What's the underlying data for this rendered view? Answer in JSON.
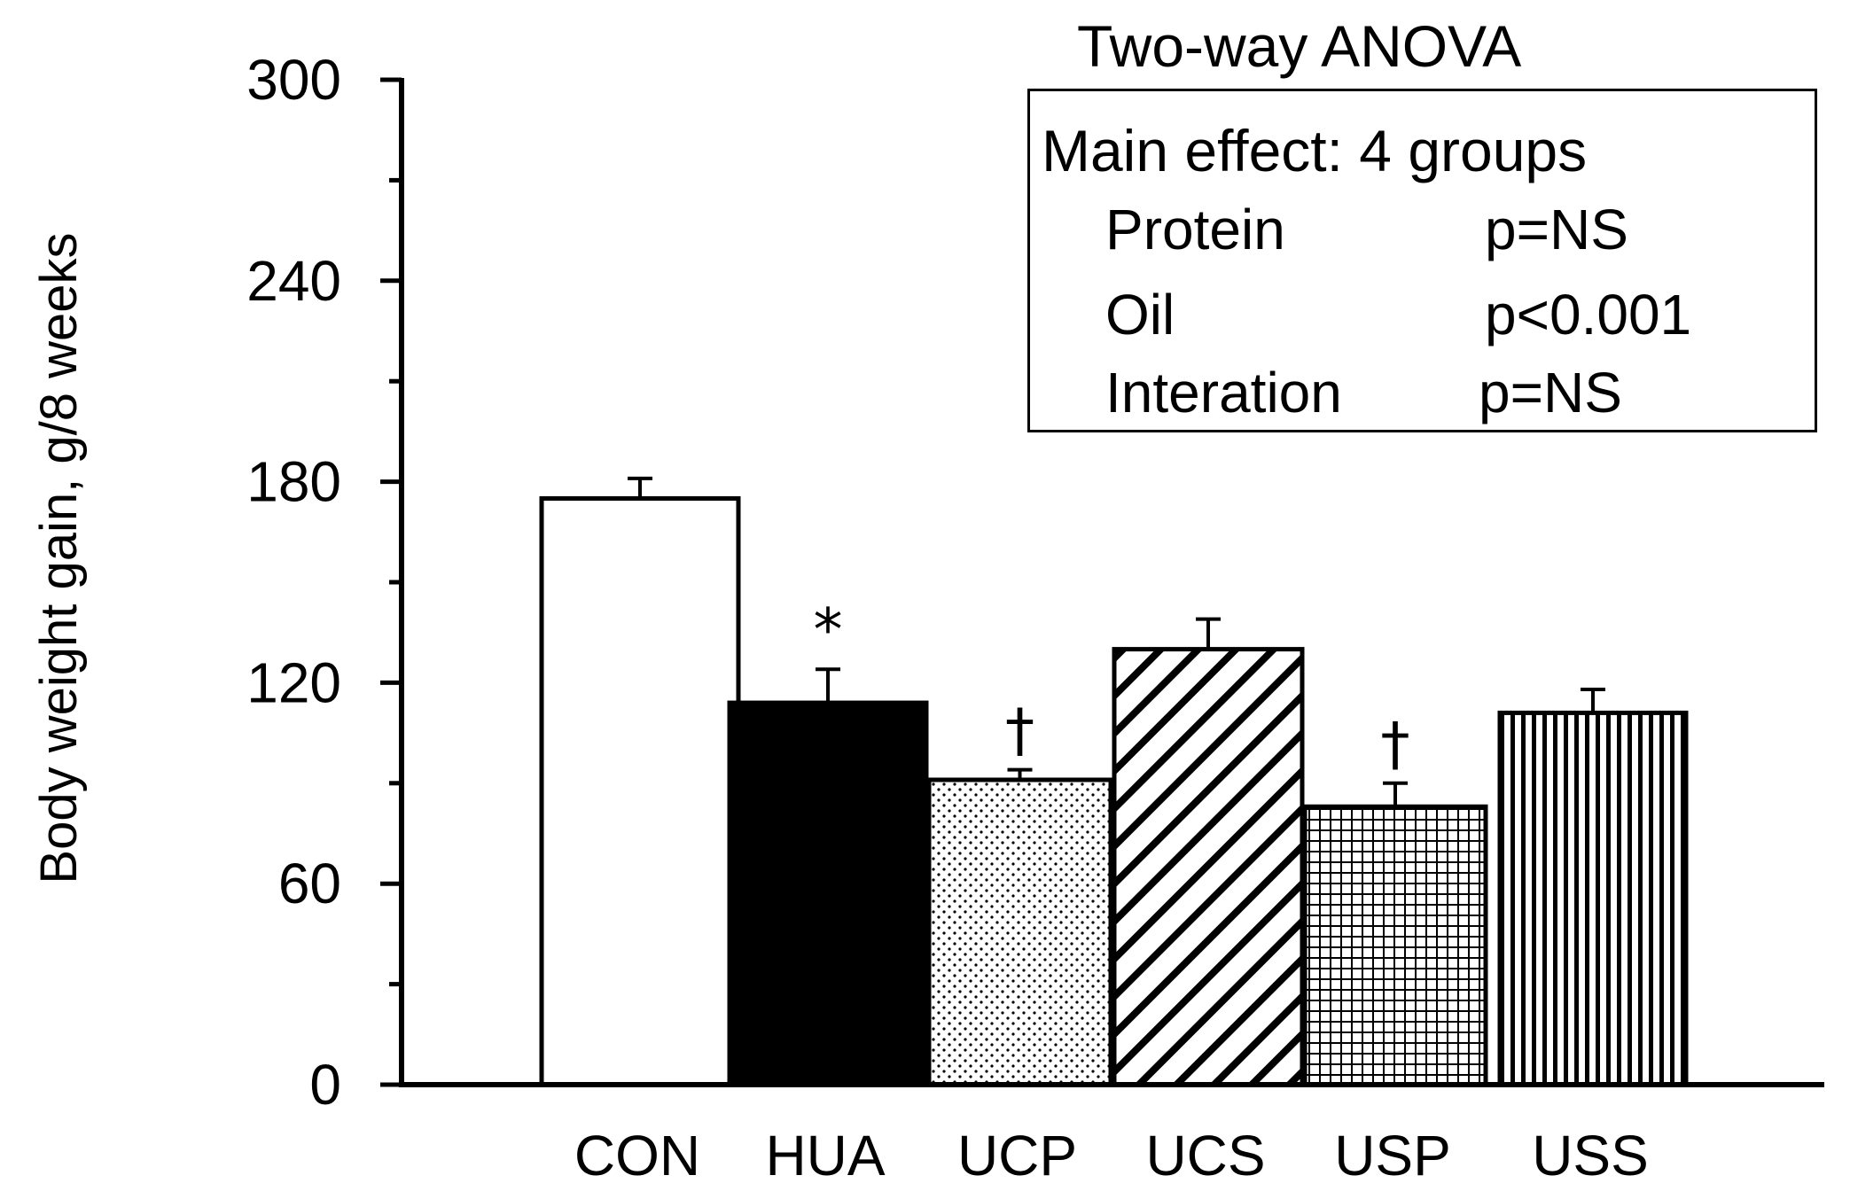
{
  "chart_data": {
    "type": "bar",
    "ylabel": "Body weight gain, g/8 weeks",
    "ylim": [
      0,
      300
    ],
    "yticks": [
      "0",
      "60",
      "120",
      "180",
      "240",
      "300"
    ],
    "categories": [
      "CON",
      "HUA",
      "UCP",
      "UCS",
      "USP",
      "USS"
    ],
    "values": [
      175,
      114,
      91,
      130,
      83,
      111
    ],
    "errors": [
      6,
      10,
      3,
      9,
      7,
      7
    ],
    "annotations": [
      "",
      "*",
      "†",
      "",
      "†",
      ""
    ],
    "fill_patterns": [
      "white",
      "solid-black",
      "dots",
      "diagonal-hatch",
      "grid",
      "vertical-lines"
    ],
    "colors": {
      "ink": "#000000",
      "background": "#ffffff"
    }
  },
  "anova": {
    "title": "Two-way ANOVA",
    "main_effect": "Main effect: 4 groups",
    "rows": [
      {
        "label": "Protein",
        "p": "p=NS"
      },
      {
        "label": "Oil",
        "p": "p<0.001"
      },
      {
        "label": "Interation",
        "p": "p=NS"
      }
    ]
  }
}
